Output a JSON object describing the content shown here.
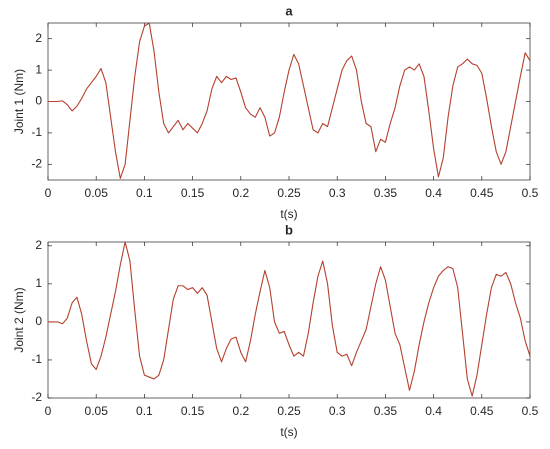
{
  "chart_data": [
    {
      "type": "line",
      "title": "a",
      "xlabel": "t(s)",
      "ylabel": "Joint 1 (Nm)",
      "xlim": [
        0,
        0.5
      ],
      "xticks": [
        0,
        0.05,
        0.1,
        0.15,
        0.2,
        0.25,
        0.3,
        0.35,
        0.4,
        0.45,
        0.5
      ],
      "ylim": [
        -2.5,
        2.5
      ],
      "yticks": [
        -2,
        -1,
        0,
        1,
        2
      ],
      "x": [
        0,
        0.005,
        0.01,
        0.015,
        0.02,
        0.025,
        0.03,
        0.035,
        0.04,
        0.045,
        0.05,
        0.055,
        0.06,
        0.065,
        0.07,
        0.075,
        0.08,
        0.085,
        0.09,
        0.095,
        0.1,
        0.105,
        0.11,
        0.115,
        0.12,
        0.125,
        0.13,
        0.135,
        0.14,
        0.145,
        0.15,
        0.155,
        0.16,
        0.165,
        0.17,
        0.175,
        0.18,
        0.185,
        0.19,
        0.195,
        0.2,
        0.205,
        0.21,
        0.215,
        0.22,
        0.225,
        0.23,
        0.235,
        0.24,
        0.245,
        0.25,
        0.255,
        0.26,
        0.265,
        0.27,
        0.275,
        0.28,
        0.285,
        0.29,
        0.295,
        0.3,
        0.305,
        0.31,
        0.315,
        0.32,
        0.325,
        0.33,
        0.335,
        0.34,
        0.345,
        0.35,
        0.355,
        0.36,
        0.365,
        0.37,
        0.375,
        0.38,
        0.385,
        0.39,
        0.395,
        0.4,
        0.405,
        0.41,
        0.415,
        0.42,
        0.425,
        0.43,
        0.435,
        0.44,
        0.445,
        0.45,
        0.455,
        0.46,
        0.465,
        0.47,
        0.475,
        0.48,
        0.485,
        0.49,
        0.495,
        0.5
      ],
      "series": [
        {
          "color": "#b5402e",
          "values": [
            0,
            0,
            0,
            0.02,
            -0.1,
            -0.3,
            -0.15,
            0.1,
            0.4,
            0.6,
            0.8,
            1.05,
            0.6,
            -0.5,
            -1.6,
            -2.45,
            -2.0,
            -0.6,
            0.8,
            1.9,
            2.4,
            2.5,
            1.6,
            0.3,
            -0.7,
            -1.0,
            -0.8,
            -0.6,
            -0.9,
            -0.7,
            -0.85,
            -1.0,
            -0.7,
            -0.3,
            0.4,
            0.8,
            0.6,
            0.8,
            0.7,
            0.75,
            0.3,
            -0.2,
            -0.4,
            -0.5,
            -0.2,
            -0.5,
            -1.1,
            -1.0,
            -0.5,
            0.3,
            1.0,
            1.5,
            1.2,
            0.5,
            -0.2,
            -0.9,
            -1.0,
            -0.7,
            -0.8,
            -0.2,
            0.4,
            1.0,
            1.3,
            1.45,
            1.0,
            0.0,
            -0.7,
            -0.8,
            -1.6,
            -1.2,
            -1.3,
            -0.7,
            -0.2,
            0.5,
            1.0,
            1.1,
            1.0,
            1.2,
            0.8,
            -0.3,
            -1.5,
            -2.4,
            -1.8,
            -0.5,
            0.5,
            1.1,
            1.2,
            1.35,
            1.2,
            1.15,
            0.9,
            0.1,
            -0.8,
            -1.6,
            -2.0,
            -1.6,
            -0.8,
            0.0,
            0.8,
            1.55,
            1.3
          ]
        }
      ]
    },
    {
      "type": "line",
      "title": "b",
      "xlabel": "t(s)",
      "ylabel": "Joint 2 (Nm)",
      "xlim": [
        0,
        0.5
      ],
      "xticks": [
        0,
        0.05,
        0.1,
        0.15,
        0.2,
        0.25,
        0.3,
        0.35,
        0.4,
        0.45,
        0.5
      ],
      "ylim": [
        -2,
        2.1
      ],
      "yticks": [
        -2,
        -1,
        0,
        1,
        2
      ],
      "x": [
        0,
        0.005,
        0.01,
        0.015,
        0.02,
        0.025,
        0.03,
        0.035,
        0.04,
        0.045,
        0.05,
        0.055,
        0.06,
        0.065,
        0.07,
        0.075,
        0.08,
        0.085,
        0.09,
        0.095,
        0.1,
        0.105,
        0.11,
        0.115,
        0.12,
        0.125,
        0.13,
        0.135,
        0.14,
        0.145,
        0.15,
        0.155,
        0.16,
        0.165,
        0.17,
        0.175,
        0.18,
        0.185,
        0.19,
        0.195,
        0.2,
        0.205,
        0.21,
        0.215,
        0.22,
        0.225,
        0.23,
        0.235,
        0.24,
        0.245,
        0.25,
        0.255,
        0.26,
        0.265,
        0.27,
        0.275,
        0.28,
        0.285,
        0.29,
        0.295,
        0.3,
        0.305,
        0.31,
        0.315,
        0.32,
        0.325,
        0.33,
        0.335,
        0.34,
        0.345,
        0.35,
        0.355,
        0.36,
        0.365,
        0.37,
        0.375,
        0.38,
        0.385,
        0.39,
        0.395,
        0.4,
        0.405,
        0.41,
        0.415,
        0.42,
        0.425,
        0.43,
        0.435,
        0.44,
        0.445,
        0.45,
        0.455,
        0.46,
        0.465,
        0.47,
        0.475,
        0.48,
        0.485,
        0.49,
        0.495,
        0.5
      ],
      "series": [
        {
          "color": "#b5402e",
          "values": [
            0,
            0,
            0,
            -0.05,
            0.1,
            0.5,
            0.65,
            0.2,
            -0.5,
            -1.1,
            -1.25,
            -0.9,
            -0.4,
            0.2,
            0.8,
            1.5,
            2.1,
            1.6,
            0.3,
            -0.9,
            -1.4,
            -1.45,
            -1.5,
            -1.4,
            -1.0,
            -0.2,
            0.6,
            0.95,
            0.95,
            0.85,
            0.9,
            0.75,
            0.9,
            0.7,
            0.0,
            -0.7,
            -1.05,
            -0.7,
            -0.45,
            -0.4,
            -0.8,
            -1.05,
            -0.5,
            0.2,
            0.8,
            1.35,
            0.9,
            0.0,
            -0.3,
            -0.25,
            -0.6,
            -0.9,
            -0.8,
            -0.9,
            -0.3,
            0.5,
            1.2,
            1.6,
            1.0,
            -0.1,
            -0.8,
            -0.9,
            -0.85,
            -1.15,
            -0.8,
            -0.5,
            -0.2,
            0.4,
            1.0,
            1.45,
            1.1,
            0.4,
            -0.3,
            -0.6,
            -1.2,
            -1.8,
            -1.3,
            -0.6,
            0.0,
            0.5,
            0.9,
            1.2,
            1.35,
            1.45,
            1.4,
            0.9,
            -0.3,
            -1.5,
            -1.95,
            -1.4,
            -0.6,
            0.2,
            0.9,
            1.25,
            1.2,
            1.3,
            1.0,
            0.5,
            0.1,
            -0.5,
            -0.9
          ]
        }
      ]
    }
  ]
}
